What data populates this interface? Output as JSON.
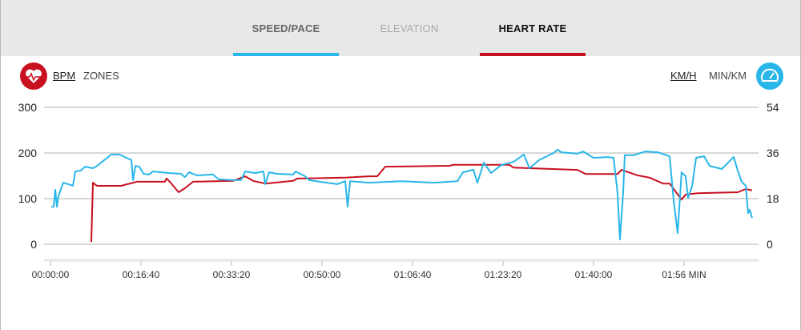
{
  "tabs": [
    {
      "label": "SPEED/PACE",
      "color": "#666666",
      "underline": "#29b6e8"
    },
    {
      "label": "ELEVATION",
      "color": "#aaaaaa",
      "underline": null
    },
    {
      "label": "HEART RATE",
      "color": "#111111",
      "underline": "#c8101e"
    }
  ],
  "left_units": {
    "icon": "heart-rate-icon",
    "active": "BPM",
    "other": "ZONES",
    "color": "#c8101e"
  },
  "right_units": {
    "icon": "speedometer-icon",
    "active": "KM/H",
    "other": "MIN/KM",
    "color": "#29b6e8"
  },
  "chart_data": {
    "type": "line",
    "xlabel": "",
    "x_unit_label": "MIN",
    "x_ticks": [
      {
        "t": 0,
        "label": "00:00:00"
      },
      {
        "t": 1000,
        "label": "00:16:40"
      },
      {
        "t": 2000,
        "label": "00:33:20"
      },
      {
        "t": 3000,
        "label": "00:50:00"
      },
      {
        "t": 4000,
        "label": "01:06:40"
      },
      {
        "t": 5000,
        "label": "01:23:20"
      },
      {
        "t": 6000,
        "label": "01:40:00"
      },
      {
        "t": 7000,
        "label": "01:56 MIN"
      }
    ],
    "left_axis": {
      "label": "BPM",
      "range": [
        0,
        300
      ],
      "ticks": [
        "0",
        "100",
        "200",
        "300"
      ]
    },
    "right_axis": {
      "label": "KM/H",
      "range": [
        0,
        54
      ],
      "ticks": [
        "0",
        "18",
        "36",
        "54"
      ]
    },
    "grid": true,
    "series": [
      {
        "name": "Heart rate (BPM)",
        "axis": "left",
        "color": "#c8101e",
        "points": [
          [
            451,
            5
          ],
          [
            469,
            135
          ],
          [
            513,
            128
          ],
          [
            779,
            128
          ],
          [
            956,
            137
          ],
          [
            1265,
            137
          ],
          [
            1283,
            144
          ],
          [
            1327,
            135
          ],
          [
            1416,
            114
          ],
          [
            1487,
            123
          ],
          [
            1575,
            137
          ],
          [
            2018,
            139
          ],
          [
            2150,
            149
          ],
          [
            2239,
            139
          ],
          [
            2372,
            133
          ],
          [
            2681,
            139
          ],
          [
            2726,
            144
          ],
          [
            3257,
            146
          ],
          [
            3522,
            149
          ],
          [
            3610,
            149
          ],
          [
            3699,
            170
          ],
          [
            4407,
            172
          ],
          [
            4451,
            174
          ],
          [
            5071,
            174
          ],
          [
            5115,
            168
          ],
          [
            5823,
            163
          ],
          [
            5912,
            154
          ],
          [
            6265,
            154
          ],
          [
            6310,
            163
          ],
          [
            6487,
            151
          ],
          [
            6619,
            146
          ],
          [
            6770,
            133
          ],
          [
            6841,
            133
          ],
          [
            6973,
            98
          ],
          [
            7018,
            109
          ],
          [
            7150,
            112
          ],
          [
            7593,
            114
          ],
          [
            7681,
            121
          ],
          [
            7752,
            118
          ]
        ]
      },
      {
        "name": "Speed (KM/H)",
        "axis": "right",
        "color": "#29b6e8",
        "points": [
          [
            9,
            14.8
          ],
          [
            35,
            14.8
          ],
          [
            53,
            21.5
          ],
          [
            71,
            14.8
          ],
          [
            88,
            18.9
          ],
          [
            142,
            24.3
          ],
          [
            248,
            23.1
          ],
          [
            274,
            28.7
          ],
          [
            336,
            29.1
          ],
          [
            381,
            30.6
          ],
          [
            469,
            30.0
          ],
          [
            513,
            30.9
          ],
          [
            673,
            35.4
          ],
          [
            761,
            35.4
          ],
          [
            823,
            34.4
          ],
          [
            894,
            33.2
          ],
          [
            912,
            25.3
          ],
          [
            938,
            30.9
          ],
          [
            982,
            30.6
          ],
          [
            1027,
            27.8
          ],
          [
            1088,
            27.5
          ],
          [
            1133,
            28.7
          ],
          [
            1310,
            28.1
          ],
          [
            1442,
            27.8
          ],
          [
            1487,
            26.5
          ],
          [
            1531,
            28.4
          ],
          [
            1619,
            27.2
          ],
          [
            1796,
            27.5
          ],
          [
            1858,
            25.6
          ],
          [
            2018,
            25.3
          ],
          [
            2106,
            25.3
          ],
          [
            2150,
            28.7
          ],
          [
            2265,
            28.1
          ],
          [
            2354,
            28.7
          ],
          [
            2372,
            23.7
          ],
          [
            2416,
            28.4
          ],
          [
            2504,
            27.8
          ],
          [
            2681,
            27.5
          ],
          [
            2708,
            28.7
          ],
          [
            2814,
            26.8
          ],
          [
            2858,
            25.3
          ],
          [
            2991,
            24.6
          ],
          [
            3168,
            23.7
          ],
          [
            3257,
            24.9
          ],
          [
            3283,
            14.8
          ],
          [
            3310,
            24.9
          ],
          [
            3522,
            24.3
          ],
          [
            3876,
            24.9
          ],
          [
            4230,
            24.3
          ],
          [
            4496,
            24.9
          ],
          [
            4558,
            28.4
          ],
          [
            4673,
            29.4
          ],
          [
            4717,
            24.3
          ],
          [
            4788,
            32.2
          ],
          [
            4867,
            28.1
          ],
          [
            4982,
            31.3
          ],
          [
            5115,
            32.5
          ],
          [
            5230,
            35.4
          ],
          [
            5292,
            30.0
          ],
          [
            5398,
            33.2
          ],
          [
            5558,
            36.0
          ],
          [
            5602,
            37.3
          ],
          [
            5646,
            36.3
          ],
          [
            5823,
            35.7
          ],
          [
            5885,
            36.6
          ],
          [
            6000,
            34.1
          ],
          [
            6159,
            34.4
          ],
          [
            6221,
            34.1
          ],
          [
            6265,
            20.5
          ],
          [
            6292,
            1.9
          ],
          [
            6327,
            20.5
          ],
          [
            6345,
            35.1
          ],
          [
            6442,
            35.1
          ],
          [
            6575,
            36.6
          ],
          [
            6708,
            36.3
          ],
          [
            6841,
            34.7
          ],
          [
            6885,
            17.4
          ],
          [
            6929,
            4.4
          ],
          [
            6973,
            28.4
          ],
          [
            7018,
            26.8
          ],
          [
            7044,
            18.3
          ],
          [
            7088,
            22.7
          ],
          [
            7133,
            34.1
          ],
          [
            7221,
            34.7
          ],
          [
            7283,
            30.9
          ],
          [
            7416,
            29.7
          ],
          [
            7549,
            34.4
          ],
          [
            7593,
            29.1
          ],
          [
            7637,
            24.6
          ],
          [
            7681,
            23.1
          ],
          [
            7708,
            12.3
          ],
          [
            7726,
            13.6
          ],
          [
            7752,
            10.4
          ]
        ]
      }
    ]
  }
}
